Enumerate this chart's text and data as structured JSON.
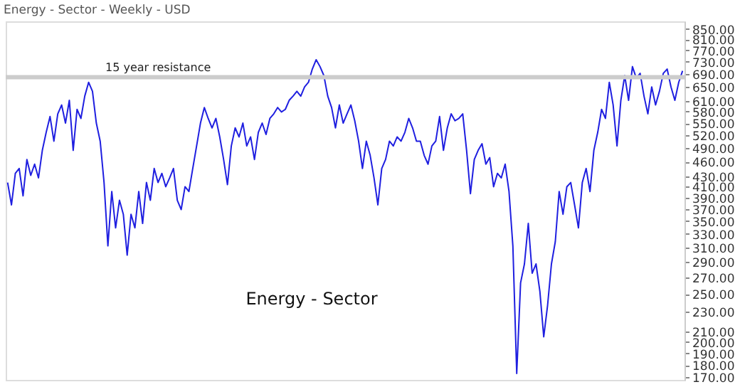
{
  "chart_data": {
    "type": "line",
    "title": "Energy - Sector - Weekly - USD",
    "annotations": [
      "Energy - Sector"
    ],
    "categories": [
      null,
      null,
      null,
      null,
      null,
      null,
      null,
      null,
      null,
      null,
      null,
      null,
      null,
      null,
      null,
      null,
      null,
      null,
      null,
      null,
      null,
      null,
      null,
      null,
      null,
      null,
      null,
      null,
      null,
      null,
      null,
      null,
      null,
      null,
      null,
      null,
      null,
      null,
      null,
      null,
      null,
      null,
      null,
      null,
      null,
      null,
      null,
      null,
      null,
      null,
      null,
      null,
      null,
      null,
      null,
      null,
      null,
      null,
      null,
      null,
      null,
      null,
      null,
      null,
      null,
      null,
      null,
      null,
      null,
      null,
      null,
      null,
      null,
      null,
      null,
      null,
      null,
      null,
      null,
      null,
      null,
      null,
      null,
      null,
      null,
      null,
      null,
      null,
      null,
      null,
      null,
      null,
      null,
      null,
      null,
      null,
      null,
      null,
      null,
      null,
      null,
      null,
      null,
      null,
      null,
      null,
      null,
      null,
      null,
      null,
      null,
      null,
      null,
      null,
      null,
      null,
      null,
      null,
      null,
      null,
      null,
      null,
      null,
      null,
      null,
      null,
      null,
      null,
      null,
      null,
      null,
      null,
      null,
      null,
      null,
      null,
      null,
      null,
      null,
      null,
      null,
      null,
      null,
      null,
      null,
      null,
      null,
      null,
      null,
      null,
      null,
      null,
      null,
      null,
      null,
      null,
      null,
      null,
      null,
      null,
      null,
      null,
      null,
      null,
      null,
      null,
      null,
      null,
      null,
      null,
      null,
      null,
      null,
      null,
      null,
      null
    ],
    "series": [
      {
        "color": "#1f1fe0",
        "values": [
          418,
          377,
          436,
          446,
          393,
          465,
          432,
          455,
          427,
          485,
          527,
          567,
          506,
          574,
          598,
          550,
          611,
          485,
          586,
          562,
          623,
          664,
          637,
          550,
          506,
          418,
          312,
          401,
          339,
          385,
          361,
          299,
          361,
          339,
          401,
          346,
          418,
          385,
          446,
          418,
          436,
          410,
          427,
          446,
          385,
          369,
          410,
          401,
          446,
          495,
          550,
          591,
          562,
          538,
          562,
          516,
          465,
          414,
          495,
          538,
          516,
          550,
          495,
          516,
          465,
          527,
          550,
          522,
          562,
          574,
          591,
          579,
          586,
          611,
          623,
          637,
          623,
          650,
          664,
          706,
          737,
          714,
          685,
          623,
          591,
          538,
          598,
          550,
          574,
          598,
          556,
          506,
          446,
          506,
          474,
          427,
          377,
          446,
          465,
          506,
          495,
          516,
          506,
          527,
          562,
          538,
          506,
          506,
          474,
          455,
          495,
          506,
          567,
          485,
          538,
          574,
          556,
          562,
          574,
          485,
          397,
          465,
          485,
          500,
          455,
          469,
          410,
          436,
          427,
          455,
          401,
          312,
          173,
          263,
          287,
          346,
          275,
          287,
          253,
          205,
          237,
          287,
          318,
          401,
          361,
          410,
          418,
          377,
          339,
          418,
          446,
          401,
          485,
          527,
          586,
          562,
          664,
          598,
          495,
          611,
          685,
          611,
          714,
          677,
          692,
          623,
          574,
          650,
          598,
          637,
          692,
          706,
          650,
          611,
          664,
          700
        ]
      }
    ],
    "log": "y",
    "ylim": [
      168,
      880
    ],
    "yticks": [
      {
        "value": 170,
        "label": "170.00"
      },
      {
        "value": 180,
        "label": "180.00"
      },
      {
        "value": 190,
        "label": "190.00"
      },
      {
        "value": 200,
        "label": "200.00"
      },
      {
        "value": 210,
        "label": "210.00"
      },
      {
        "value": 230,
        "label": "230.00"
      },
      {
        "value": 250,
        "label": "250.00"
      },
      {
        "value": 270,
        "label": "270.00"
      },
      {
        "value": 290,
        "label": "290.00"
      },
      {
        "value": 310,
        "label": "310.00"
      },
      {
        "value": 330,
        "label": "330.00"
      },
      {
        "value": 350,
        "label": "350.00"
      },
      {
        "value": 370,
        "label": "370.00"
      },
      {
        "value": 390,
        "label": "390.00"
      },
      {
        "value": 410,
        "label": "410.00"
      },
      {
        "value": 430,
        "label": "430.00"
      },
      {
        "value": 460,
        "label": "460.00"
      },
      {
        "value": 490,
        "label": "490.00"
      },
      {
        "value": 520,
        "label": "520.00"
      },
      {
        "value": 550,
        "label": "550.00"
      },
      {
        "value": 580,
        "label": "580.00"
      },
      {
        "value": 610,
        "label": "610.00"
      },
      {
        "value": 650,
        "label": "650.00"
      },
      {
        "value": 690,
        "label": "690.00"
      },
      {
        "value": 730,
        "label": "730.00"
      },
      {
        "value": 770,
        "label": "770.00"
      },
      {
        "value": 810,
        "label": "810.00"
      },
      {
        "value": 850,
        "label": "850.00"
      }
    ],
    "ref_lines": [
      {
        "axis": "y",
        "value": 680,
        "label": "15 year resistance",
        "color": "#cccccc"
      }
    ],
    "tick_labels": "y",
    "grid": false,
    "legend": false,
    "marker": "none",
    "line_style": "solid"
  }
}
